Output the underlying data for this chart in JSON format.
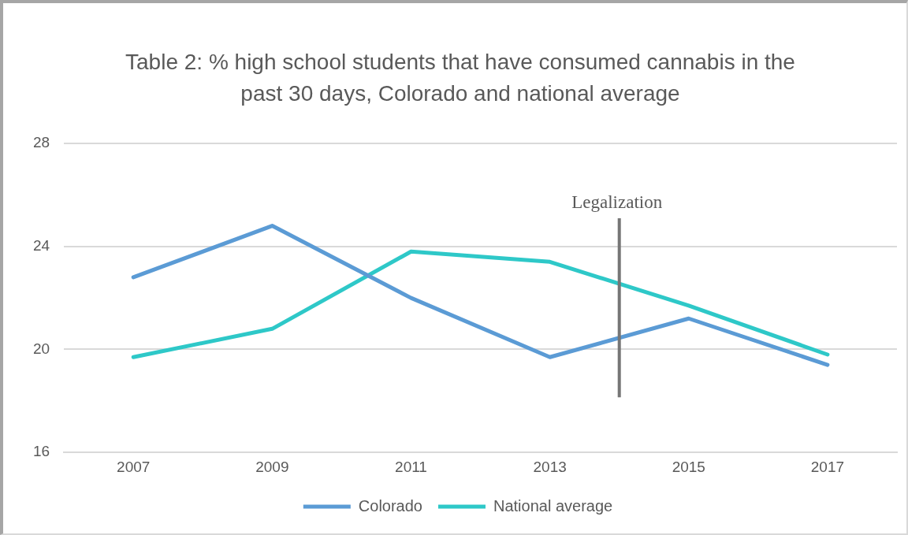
{
  "chart_data": {
    "type": "line",
    "title": "Table 2: % high school students that have consumed cannabis in the past 30 days, Colorado and national average",
    "x": [
      2007,
      2009,
      2011,
      2013,
      2015,
      2017
    ],
    "series": [
      {
        "name": "Colorado",
        "color": "#5b9bd5",
        "values": [
          22.8,
          24.8,
          22.0,
          19.7,
          21.2,
          19.4
        ]
      },
      {
        "name": "National average",
        "color": "#2ec8c8",
        "values": [
          19.7,
          20.8,
          23.8,
          23.4,
          21.7,
          19.8
        ]
      }
    ],
    "xlim": [
      2006,
      2018
    ],
    "xticks": [
      2007,
      2009,
      2011,
      2013,
      2015,
      2017
    ],
    "ylim": [
      16,
      28
    ],
    "yticks": [
      16,
      20,
      24,
      28
    ],
    "ref_lines": [
      {
        "axis": "x",
        "value": 2014,
        "label": "Legalization",
        "color": "#767676"
      }
    ],
    "grid": "y",
    "legend": "bottom",
    "marker": "none",
    "line_style": "solid"
  }
}
